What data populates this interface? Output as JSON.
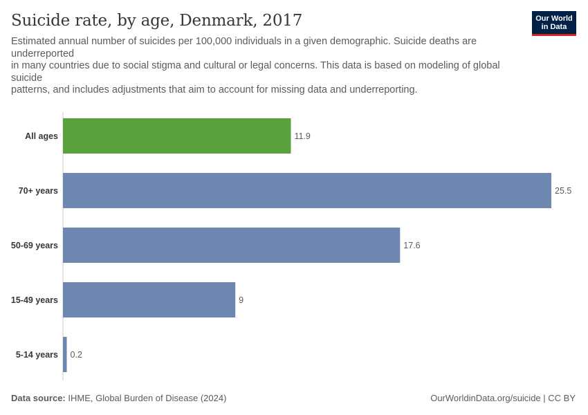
{
  "header": {
    "title": "Suicide rate, by age, Denmark, 2017",
    "subtitle_lines": [
      "Estimated annual number of suicides per 100,000 individuals in a given demographic. Suicide deaths are",
      "underreported",
      "in many countries due to social stigma and cultural or legal concerns. This data is based on modeling of global",
      "suicide",
      "patterns, and includes adjustments that aim to account for missing data and underreporting."
    ]
  },
  "logo": {
    "line1": "Our World",
    "line2": "in Data"
  },
  "footer": {
    "source_label": "Data source:",
    "source_text": " IHME, Global Burden of Disease (2024)",
    "credit": "OurWorldinData.org/suicide | CC BY"
  },
  "colors": {
    "highlight": "#58a13c",
    "bar": "#6d87b1",
    "axis": "#cccccc",
    "label": "#373737",
    "value": "#5b5b5b"
  },
  "chart_data": {
    "type": "bar",
    "orientation": "horizontal",
    "categories": [
      "All ages",
      "70+ years",
      "50-69 years",
      "15-49 years",
      "5-14 years"
    ],
    "values": [
      11.9,
      25.5,
      17.6,
      9,
      0.2
    ],
    "value_labels": [
      "11.9",
      "25.5",
      "17.6",
      "9",
      "0.2"
    ],
    "highlight": [
      true,
      false,
      false,
      false,
      false
    ],
    "xlim": [
      0,
      25.5
    ]
  }
}
